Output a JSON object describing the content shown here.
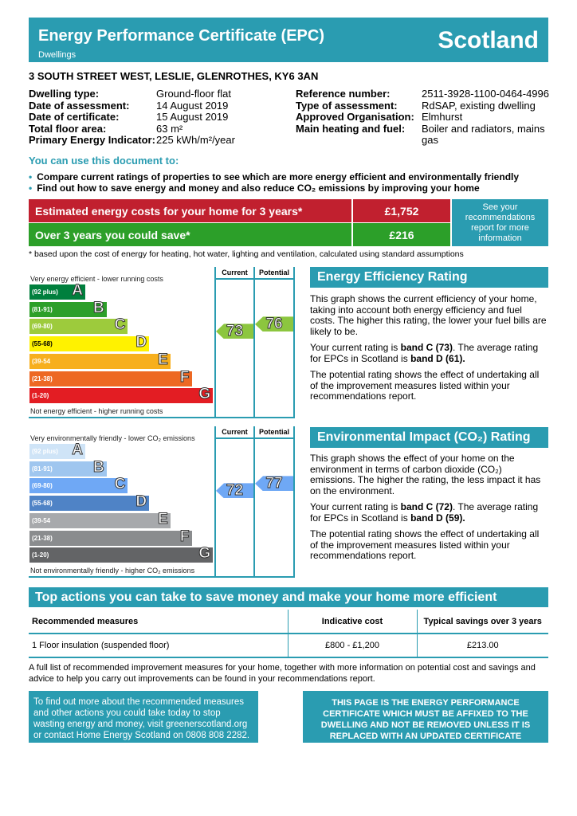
{
  "header": {
    "title": "Energy Performance Certificate (EPC)",
    "subtitle": "Dwellings",
    "country": "Scotland"
  },
  "address": "3 SOUTH STREET WEST, LESLIE, GLENROTHES, KY6 3AN",
  "details_left": [
    {
      "label": "Dwelling type:",
      "value": "Ground-floor flat"
    },
    {
      "label": "Date of assessment:",
      "value": "14 August 2019"
    },
    {
      "label": "Date of certificate:",
      "value": "15 August 2019"
    },
    {
      "label": "Total floor area:",
      "value": "63 m²"
    },
    {
      "label": "Primary Energy Indicator:",
      "value": "225 kWh/m²/year"
    }
  ],
  "details_right": [
    {
      "label": "Reference number:",
      "value": "2511-3928-1100-0464-4996"
    },
    {
      "label": "Type of assessment:",
      "value": "RdSAP, existing dwelling"
    },
    {
      "label": "Approved Organisation:",
      "value": "Elmhurst"
    },
    {
      "label": "Main heating and fuel:",
      "value": "Boiler and radiators, mains gas"
    }
  ],
  "use_heading": "You can use this document to:",
  "bullets": [
    "Compare current ratings of properties to see which are more energy efficient and environmentally friendly",
    "Find out how to save energy and money and also reduce CO₂ emissions by improving your home"
  ],
  "costs": {
    "estimated_label": "Estimated energy costs for your home for 3 years*",
    "estimated_value": "£1,752",
    "save_label": "Over 3 years you could save*",
    "save_value": "£216",
    "see_label": "See your recommendations report for more information",
    "footnote": "* based upon the cost of energy for heating, hot water, lighting and ventilation, calculated using standard assumptions"
  },
  "charts": {
    "current_label": "Current",
    "potential_label": "Potential",
    "energy": {
      "top": "Very energy efficient - lower running costs",
      "bottom": "Not energy efficient - higher running costs",
      "current": 73,
      "potential": 76,
      "arrow_color": "#8cc63f",
      "bands": [
        {
          "range": "(92 plus)",
          "letter": "A",
          "color": "#007f3d"
        },
        {
          "range": "(81-91)",
          "letter": "B",
          "color": "#2c9f29"
        },
        {
          "range": "(69-80)",
          "letter": "C",
          "color": "#9dcb3c"
        },
        {
          "range": "(55-68)",
          "letter": "D",
          "color": "#fff200"
        },
        {
          "range": "(39-54",
          "letter": "E",
          "color": "#f7af1d"
        },
        {
          "range": "(21-38)",
          "letter": "F",
          "color": "#ed6823"
        },
        {
          "range": "(1-20)",
          "letter": "G",
          "color": "#e31d23"
        }
      ]
    },
    "environment": {
      "top": "Very environmentally friendly - lower CO₂ emissions",
      "bottom": "Not environmentally friendly - higher CO₂ emissions",
      "current": 72,
      "potential": 77,
      "arrow_color": "#6fa8f5",
      "bands": [
        {
          "range": "(92 plus)",
          "letter": "A",
          "color": "#cfe4f7"
        },
        {
          "range": "(81-91)",
          "letter": "B",
          "color": "#9fc6ef"
        },
        {
          "range": "(69-80)",
          "letter": "C",
          "color": "#6fa8f5"
        },
        {
          "range": "(55-68)",
          "letter": "D",
          "color": "#4f83c6"
        },
        {
          "range": "(39-54",
          "letter": "E",
          "color": "#a7a9ac"
        },
        {
          "range": "(21-38)",
          "letter": "F",
          "color": "#8a8c8e"
        },
        {
          "range": "(1-20)",
          "letter": "G",
          "color": "#636466"
        }
      ]
    }
  },
  "eer": {
    "title": "Energy Efficiency Rating",
    "p1": "This graph shows the current efficiency of your home, taking into account both energy efficiency and fuel costs. The higher this rating, the lower your fuel bills are likely to be.",
    "p2a": "Your current rating is ",
    "p2b": "band C (73)",
    "p2c": ". The average rating for EPCs in Scotland is ",
    "p2d": "band D (61).",
    "p3": "The potential rating shows the effect of undertaking all of the improvement measures listed within your recommendations report."
  },
  "eir": {
    "title": "Environmental Impact (CO₂) Rating",
    "p1": "This graph shows the effect of your home on the environment in terms of carbon dioxide (CO₂) emissions. The higher the rating, the less impact it has on the environment.",
    "p2a": "Your current rating is ",
    "p2b": "band C (72)",
    "p2c": ". The average rating for EPCs in Scotland is ",
    "p2d": "band D (59).",
    "p3": "The potential rating shows the effect of undertaking all of the improvement measures listed within your recommendations report."
  },
  "actions": {
    "title": "Top actions you can take to save money and make your home more efficient",
    "headers": [
      "Recommended measures",
      "Indicative cost",
      "Typical savings over 3 years"
    ],
    "rows": [
      [
        "1 Floor insulation (suspended floor)",
        "£800 - £1,200",
        "£213.00"
      ]
    ],
    "note": "A full list of recommended improvement measures for your home, together with more information on potential cost and savings and advice to help you carry out improvements can be found in your recommendations report."
  },
  "footer": {
    "left": "To find out more about the recommended measures and other actions you could take today to stop wasting energy and money, visit greenerscotland.org or contact Home Energy Scotland on 0808 808 2282.",
    "right": "THIS PAGE IS THE ENERGY PERFORMANCE CERTIFICATE WHICH MUST BE AFFIXED TO THE DWELLING AND NOT BE REMOVED UNLESS IT IS REPLACED WITH AN UPDATED CERTIFICATE"
  }
}
